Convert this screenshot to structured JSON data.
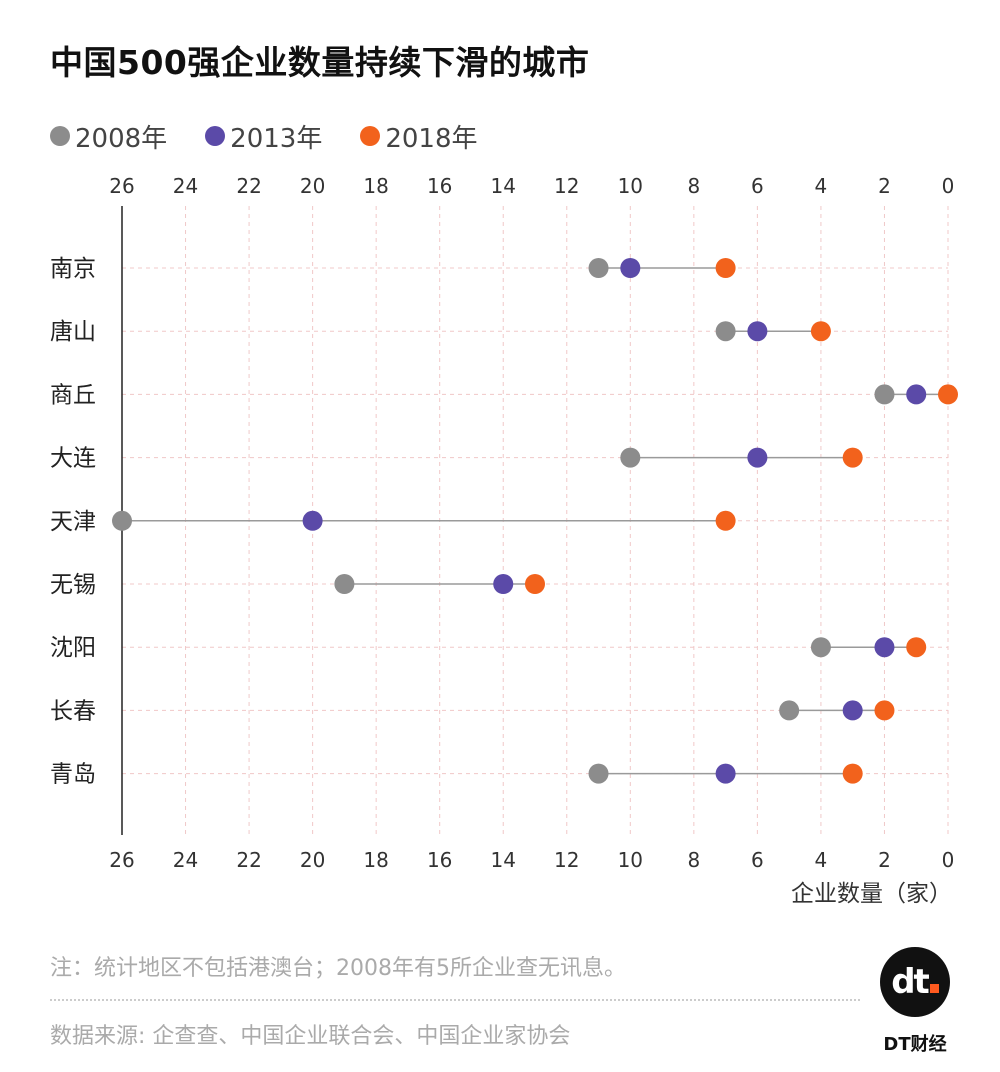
{
  "title": "中国500强企业数量持续下滑的城市",
  "legend": [
    {
      "label": "2008年",
      "color": "#8c8c8c"
    },
    {
      "label": "2013年",
      "color": "#5b4aa8"
    },
    {
      "label": "2018年",
      "color": "#f2621c"
    }
  ],
  "axis_unit_label": "企业数量（家）",
  "note": "注：统计地区不包括港澳台；2008年有5所企业查无讯息。",
  "source": "数据来源: 企查查、中国企业联合会、中国企业家协会",
  "brand": "DT财经",
  "logo_text": "dt",
  "chart_data": {
    "type": "scatter",
    "subtype": "dumbbell",
    "xlim": [
      26,
      0
    ],
    "x_reversed": true,
    "xticks": [
      26,
      24,
      22,
      20,
      18,
      16,
      14,
      12,
      10,
      8,
      6,
      4,
      2,
      0
    ],
    "xlabel": "企业数量（家）",
    "grid": true,
    "categories": [
      "南京",
      "唐山",
      "商丘",
      "大连",
      "天津",
      "无锡",
      "沈阳",
      "长春",
      "青岛"
    ],
    "series": [
      {
        "name": "2008年",
        "color": "#8c8c8c",
        "values": [
          11,
          7,
          2,
          10,
          26,
          19,
          4,
          5,
          11
        ]
      },
      {
        "name": "2013年",
        "color": "#5b4aa8",
        "values": [
          10,
          6,
          1,
          6,
          20,
          14,
          2,
          3,
          7
        ]
      },
      {
        "name": "2018年",
        "color": "#f2621c",
        "values": [
          7,
          4,
          0,
          3,
          7,
          13,
          1,
          2,
          3
        ]
      }
    ]
  }
}
